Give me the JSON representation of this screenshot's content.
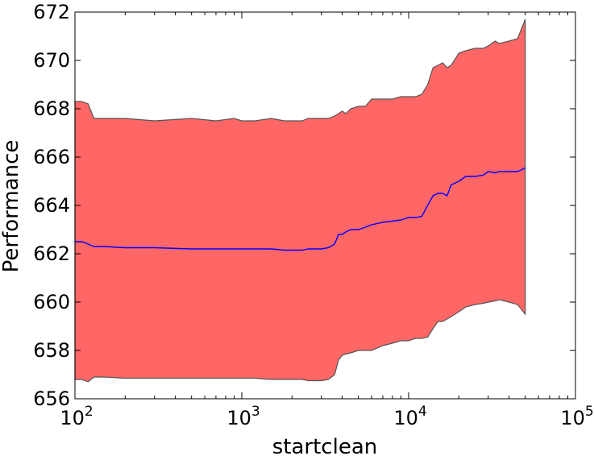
{
  "chart_data": {
    "type": "area",
    "title": "",
    "xlabel": "startclean",
    "ylabel": "Performance",
    "xscale": "log",
    "xlim": [
      100,
      100000
    ],
    "ylim": [
      656,
      672
    ],
    "grid": false,
    "colors": {
      "band_fill": "#ff6666",
      "band_edge": "#555555",
      "mean_line": "#0000ff",
      "axis": "#000000"
    },
    "x_ticks": [
      {
        "value": 100,
        "base": "10",
        "exp": "2"
      },
      {
        "value": 1000,
        "base": "10",
        "exp": "3"
      },
      {
        "value": 10000,
        "base": "10",
        "exp": "4"
      },
      {
        "value": 100000,
        "base": "10",
        "exp": "5"
      }
    ],
    "y_ticks": [
      {
        "value": 656,
        "label": "656"
      },
      {
        "value": 658,
        "label": "658"
      },
      {
        "value": 660,
        "label": "660"
      },
      {
        "value": 662,
        "label": "662"
      },
      {
        "value": 664,
        "label": "664"
      },
      {
        "value": 666,
        "label": "666"
      },
      {
        "value": 668,
        "label": "668"
      },
      {
        "value": 670,
        "label": "670"
      },
      {
        "value": 672,
        "label": "672"
      }
    ],
    "x": [
      100,
      110,
      120,
      130,
      150,
      200,
      300,
      500,
      700,
      900,
      1000,
      1200,
      1500,
      1800,
      2000,
      2300,
      2500,
      3000,
      3300,
      3600,
      3800,
      4000,
      4200,
      4500,
      5000,
      5500,
      6000,
      7000,
      8000,
      9000,
      10000,
      11000,
      12000,
      13000,
      14000,
      15000,
      16000,
      17000,
      18000,
      20000,
      22000,
      25000,
      28000,
      30000,
      33000,
      35000,
      40000,
      45000,
      50000
    ],
    "series": [
      {
        "role": "upper",
        "values": [
          668.3,
          668.3,
          668.2,
          667.6,
          667.6,
          667.6,
          667.5,
          667.6,
          667.5,
          667.6,
          667.5,
          667.5,
          667.6,
          667.5,
          667.5,
          667.5,
          667.6,
          667.6,
          667.6,
          667.7,
          667.8,
          667.9,
          667.8,
          668.0,
          668.1,
          668.1,
          668.4,
          668.4,
          668.4,
          668.5,
          668.5,
          668.5,
          668.6,
          669.0,
          669.7,
          669.8,
          669.9,
          669.7,
          669.8,
          670.3,
          670.4,
          670.5,
          670.5,
          670.6,
          670.8,
          670.7,
          670.8,
          670.9,
          671.7
        ]
      },
      {
        "role": "mean",
        "values": [
          662.5,
          662.5,
          662.4,
          662.3,
          662.3,
          662.25,
          662.25,
          662.2,
          662.2,
          662.2,
          662.2,
          662.2,
          662.2,
          662.15,
          662.15,
          662.15,
          662.2,
          662.2,
          662.25,
          662.4,
          662.8,
          662.8,
          662.9,
          663.0,
          663.0,
          663.1,
          663.2,
          663.3,
          663.35,
          663.4,
          663.5,
          663.5,
          663.55,
          664.0,
          664.4,
          664.5,
          664.5,
          664.4,
          664.85,
          665.0,
          665.2,
          665.2,
          665.25,
          665.4,
          665.35,
          665.4,
          665.4,
          665.4,
          665.55
        ]
      },
      {
        "role": "lower",
        "values": [
          656.8,
          656.8,
          656.7,
          656.9,
          656.9,
          656.85,
          656.85,
          656.85,
          656.85,
          656.85,
          656.85,
          656.85,
          656.8,
          656.8,
          656.8,
          656.8,
          656.75,
          656.75,
          656.8,
          657.0,
          657.6,
          657.8,
          657.85,
          657.9,
          658.0,
          658.0,
          658.0,
          658.2,
          658.3,
          658.4,
          658.4,
          658.5,
          658.5,
          658.55,
          658.9,
          659.2,
          659.2,
          659.3,
          659.4,
          659.6,
          659.8,
          659.9,
          659.95,
          660.0,
          660.05,
          660.1,
          660.0,
          659.9,
          659.5
        ]
      }
    ]
  }
}
